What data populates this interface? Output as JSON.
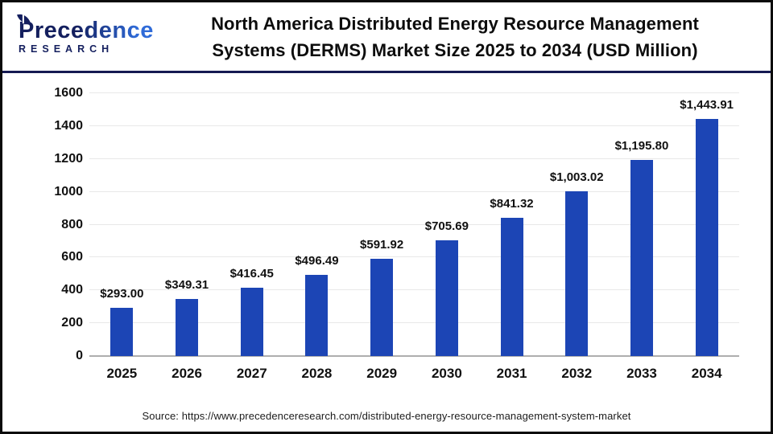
{
  "logo": {
    "name": "Precedence",
    "subtitle": "RESEARCH",
    "color_dark": "#141f5e",
    "color_light": "#2f6bd8"
  },
  "header": {
    "title_line1": "North America Distributed Energy Resource Management",
    "title_line2": "Systems (DERMS) Market Size 2025 to 2034 (USD Million)"
  },
  "chart_data": {
    "type": "bar",
    "title": "North America Distributed Energy Resource Management Systems (DERMS) Market Size 2025 to 2034 (USD Million)",
    "unit": "USD Million",
    "categories": [
      "2025",
      "2026",
      "2027",
      "2028",
      "2029",
      "2030",
      "2031",
      "2032",
      "2033",
      "2034"
    ],
    "values": [
      293.0,
      349.31,
      416.45,
      496.49,
      591.92,
      705.69,
      841.32,
      1003.02,
      1195.8,
      1443.91
    ],
    "value_labels": [
      "$293.00",
      "$349.31",
      "$416.45",
      "$496.49",
      "$591.92",
      "$705.69",
      "$841.32",
      "$1,003.02",
      "$1,195.80",
      "$1,443.91"
    ],
    "ylim": [
      0,
      1600
    ],
    "yticks": [
      0,
      200,
      400,
      600,
      800,
      1000,
      1200,
      1400,
      1600
    ],
    "bar_color": "#1c45b5",
    "grid": true,
    "legend": false,
    "xlabel": "",
    "ylabel": ""
  },
  "footer": {
    "source": "Source: https://www.precedenceresearch.com/distributed-energy-resource-management-system-market"
  }
}
